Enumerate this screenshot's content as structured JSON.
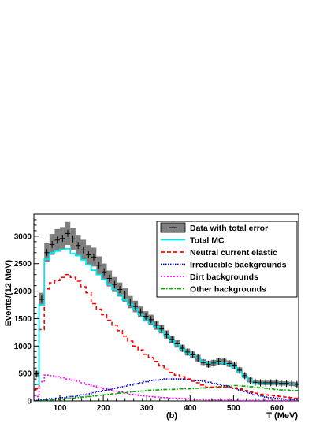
{
  "chart_data": {
    "type": "line",
    "xlabel": "T (MeV)",
    "ylabel": "Events/(12 MeV)",
    "panel_label": "(b)",
    "xlim": [
      40,
      650
    ],
    "ylim": [
      0,
      3400
    ],
    "xticks": [
      100,
      200,
      300,
      400,
      500,
      600
    ],
    "yticks": [
      0,
      500,
      1000,
      1500,
      2000,
      2500,
      3000
    ],
    "grid": false,
    "legend_position": "top-right",
    "bin_width": 12,
    "x_edges": [
      40,
      52,
      64,
      76,
      88,
      100,
      112,
      124,
      136,
      148,
      160,
      172,
      184,
      196,
      208,
      220,
      232,
      244,
      256,
      268,
      280,
      292,
      304,
      316,
      328,
      340,
      352,
      364,
      376,
      388,
      400,
      412,
      424,
      436,
      448,
      460,
      472,
      484,
      496,
      508,
      520,
      532,
      544,
      556,
      568,
      580,
      592,
      604,
      616,
      628,
      640,
      652
    ],
    "series": [
      {
        "name": "Data with total error",
        "style": "data",
        "color": "#000000",
        "band_color": "#7f7f7f",
        "values": [
          490,
          1850,
          2700,
          2850,
          2930,
          2960,
          3050,
          2950,
          2830,
          2750,
          2660,
          2620,
          2470,
          2350,
          2230,
          2120,
          2030,
          1930,
          1800,
          1720,
          1620,
          1540,
          1480,
          1380,
          1310,
          1210,
          1120,
          1040,
          960,
          890,
          840,
          780,
          700,
          670,
          690,
          720,
          710,
          680,
          640,
          560,
          460,
          380,
          340,
          330,
          330,
          330,
          330,
          320,
          320,
          310,
          300
        ],
        "errors": [
          60,
          120,
          170,
          190,
          200,
          205,
          210,
          205,
          195,
          185,
          178,
          172,
          162,
          153,
          144,
          136,
          128,
          120,
          112,
          106,
          100,
          94,
          90,
          85,
          80,
          76,
          72,
          68,
          64,
          62,
          60,
          60,
          58,
          58,
          58,
          58,
          58,
          58,
          56,
          52,
          48,
          44,
          42,
          40,
          40,
          40,
          40,
          40,
          40,
          40,
          40
        ]
      },
      {
        "name": "Total MC",
        "style": "solid",
        "color": "#00e5ee",
        "values": [
          300,
          1750,
          2580,
          2700,
          2730,
          2760,
          2770,
          2680,
          2650,
          2570,
          2480,
          2380,
          2300,
          2210,
          2120,
          2030,
          1930,
          1840,
          1760,
          1670,
          1570,
          1480,
          1420,
          1350,
          1270,
          1190,
          1100,
          1020,
          940,
          880,
          830,
          780,
          720,
          690,
          690,
          700,
          690,
          660,
          610,
          530,
          450,
          380,
          330,
          320,
          320,
          320,
          320,
          320,
          310,
          310,
          300
        ]
      },
      {
        "name": "Neutral current elastic",
        "style": "dashed",
        "color": "#ff0000",
        "values": [
          220,
          1300,
          2040,
          2150,
          2190,
          2250,
          2300,
          2250,
          2180,
          2080,
          1970,
          1770,
          1670,
          1570,
          1470,
          1380,
          1280,
          1180,
          1090,
          1000,
          930,
          850,
          790,
          720,
          640,
          580,
          520,
          470,
          440,
          400,
          360,
          330,
          290,
          250,
          250,
          250,
          250,
          250,
          240,
          220,
          190,
          160,
          140,
          120,
          110,
          100,
          90,
          80,
          70,
          60,
          50
        ]
      },
      {
        "name": "Irreducible backgrounds",
        "style": "dotted",
        "color": "#0000cc",
        "values": [
          10,
          20,
          30,
          40,
          50,
          60,
          70,
          80,
          90,
          110,
          130,
          150,
          170,
          190,
          210,
          230,
          250,
          270,
          290,
          310,
          330,
          350,
          370,
          380,
          390,
          400,
          400,
          400,
          400,
          390,
          380,
          370,
          360,
          340,
          320,
          300,
          280,
          260,
          230,
          200,
          170,
          140,
          110,
          90,
          70,
          60,
          50,
          40,
          30,
          30,
          20
        ]
      },
      {
        "name": "Dirt backgrounds",
        "style": "dashdot-fine",
        "color": "#ff00ff",
        "values": [
          80,
          350,
          470,
          460,
          440,
          420,
          400,
          380,
          360,
          330,
          300,
          270,
          240,
          220,
          200,
          180,
          160,
          140,
          120,
          110,
          100,
          90,
          80,
          70,
          60,
          60,
          50,
          50,
          40,
          40,
          30,
          30,
          30,
          20,
          20,
          20,
          20,
          20,
          10,
          10,
          10,
          10,
          10,
          10,
          10,
          10,
          10,
          10,
          10,
          10,
          10
        ]
      },
      {
        "name": "Other backgrounds",
        "style": "dashdot",
        "color": "#00aa00",
        "values": [
          5,
          10,
          15,
          20,
          25,
          30,
          40,
          50,
          60,
          70,
          80,
          90,
          100,
          110,
          120,
          130,
          140,
          150,
          160,
          170,
          180,
          190,
          195,
          200,
          205,
          210,
          210,
          215,
          220,
          220,
          225,
          230,
          235,
          240,
          250,
          260,
          270,
          275,
          280,
          280,
          270,
          260,
          250,
          240,
          230,
          220,
          210,
          200,
          200,
          190,
          190
        ]
      }
    ]
  }
}
